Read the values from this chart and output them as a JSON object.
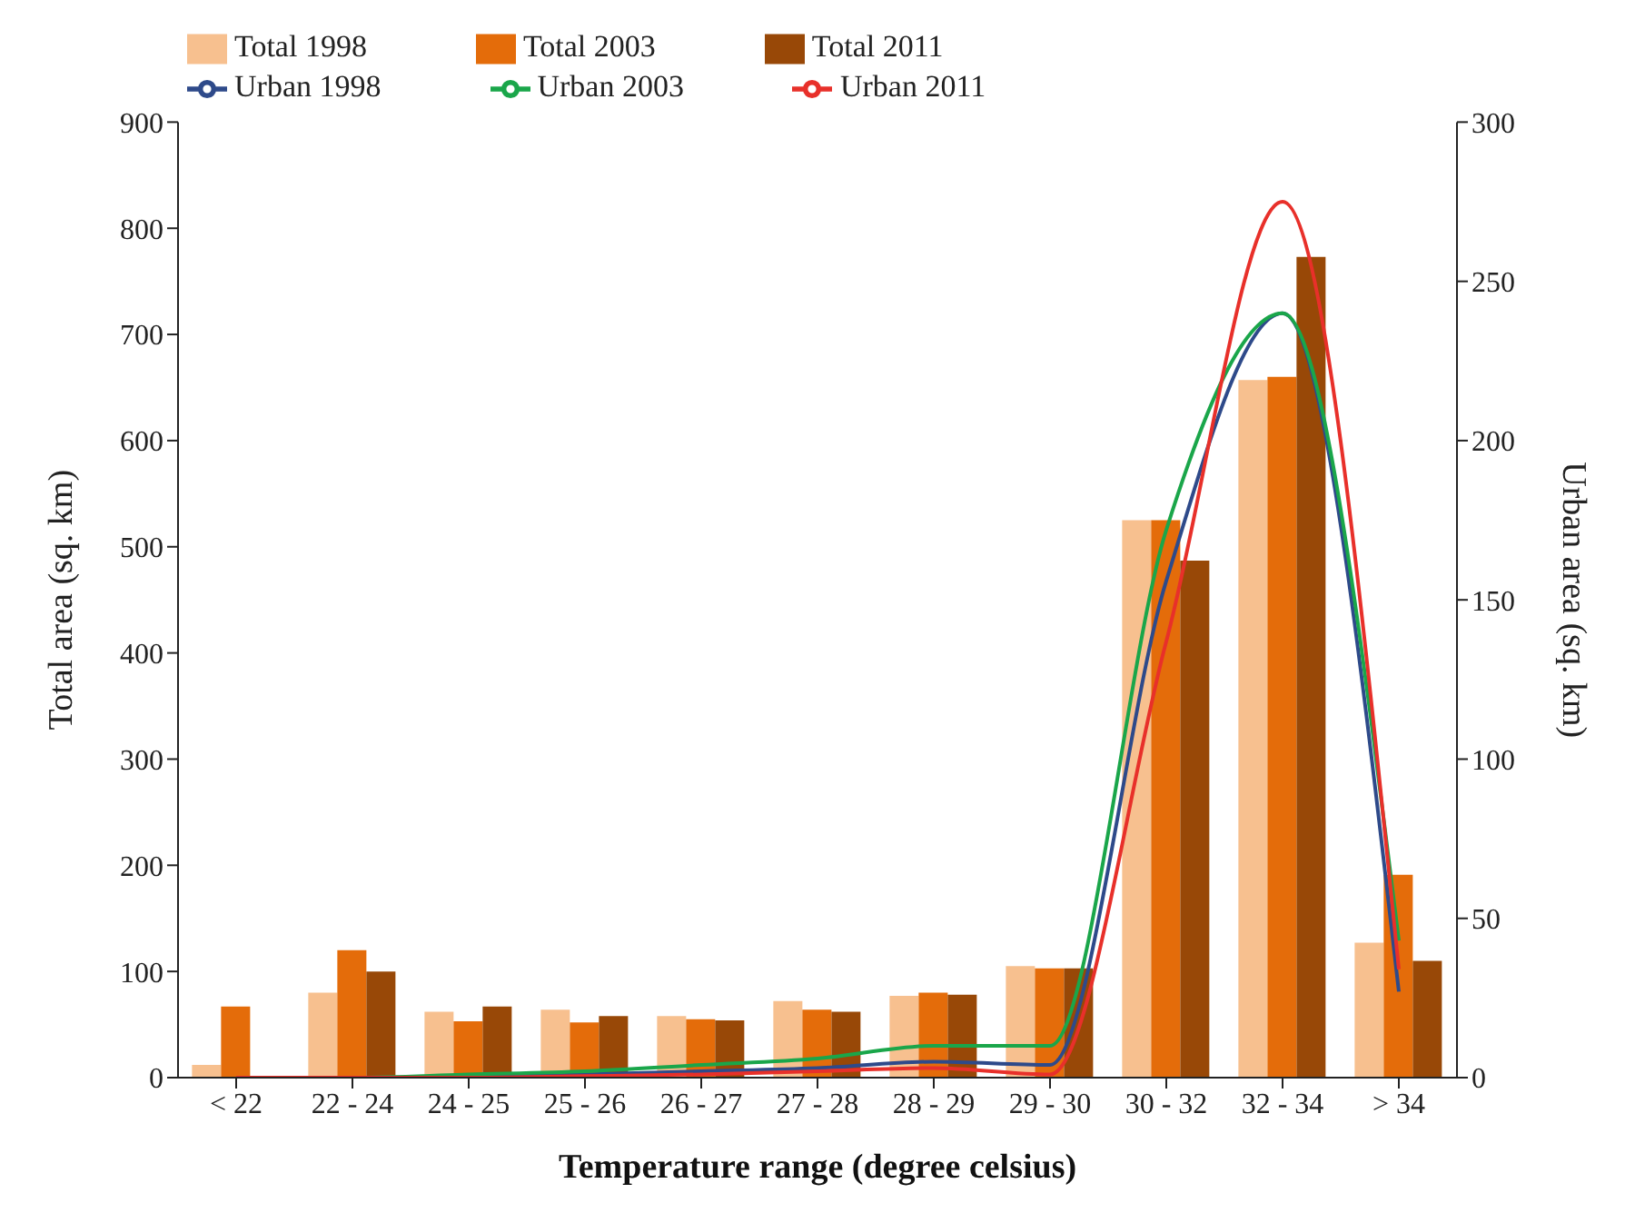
{
  "chart_data": {
    "type": "bar",
    "xlabel": "Temperature range (degree celsius)",
    "ylabel": "Total area (sq. km)",
    "y2label": "Urban area (sq. km)",
    "categories": [
      "< 22",
      "22 - 24",
      "24 - 25",
      "25 - 26",
      "26 - 27",
      "27 - 28",
      "28 - 29",
      "29 - 30",
      "30 - 32",
      "32 - 34",
      "> 34"
    ],
    "series": [
      {
        "name": "Total 1998",
        "color": "#f7c08f",
        "values": [
          12,
          80,
          62,
          64,
          58,
          72,
          77,
          105,
          525,
          657,
          127
        ]
      },
      {
        "name": "Total 2003",
        "color": "#e46c0a",
        "values": [
          67,
          120,
          53,
          52,
          55,
          64,
          80,
          103,
          525,
          660,
          191
        ]
      },
      {
        "name": "Total 2011",
        "color": "#984807",
        "values": [
          0,
          100,
          67,
          58,
          54,
          62,
          78,
          103,
          487,
          773,
          110
        ]
      },
      {
        "name": "Urban 1998",
        "type": "line",
        "axis": "y2",
        "color": "#2e4a8a",
        "values": [
          null,
          null,
          0.5,
          1,
          2,
          3,
          5,
          4,
          156,
          240,
          27
        ]
      },
      {
        "name": "Urban 2003",
        "type": "line",
        "axis": "y2",
        "color": "#1aa64a",
        "values": [
          0,
          0,
          1,
          2,
          4,
          6,
          10,
          10,
          172,
          240,
          43
        ]
      },
      {
        "name": "Urban 2011",
        "type": "line",
        "axis": "y2",
        "color": "#e8302a",
        "values": [
          0,
          0,
          0,
          0.5,
          1,
          2,
          3,
          1,
          137,
          275,
          34
        ]
      }
    ],
    "ylim": [
      0,
      900
    ],
    "yticks": [
      0,
      100,
      200,
      300,
      400,
      500,
      600,
      700,
      800,
      900
    ],
    "y2lim": [
      0,
      300
    ],
    "y2ticks": [
      0,
      50,
      100,
      150,
      200,
      250,
      300
    ],
    "grid": false,
    "legend": "top left",
    "marker": "none",
    "line_style": "solid"
  }
}
